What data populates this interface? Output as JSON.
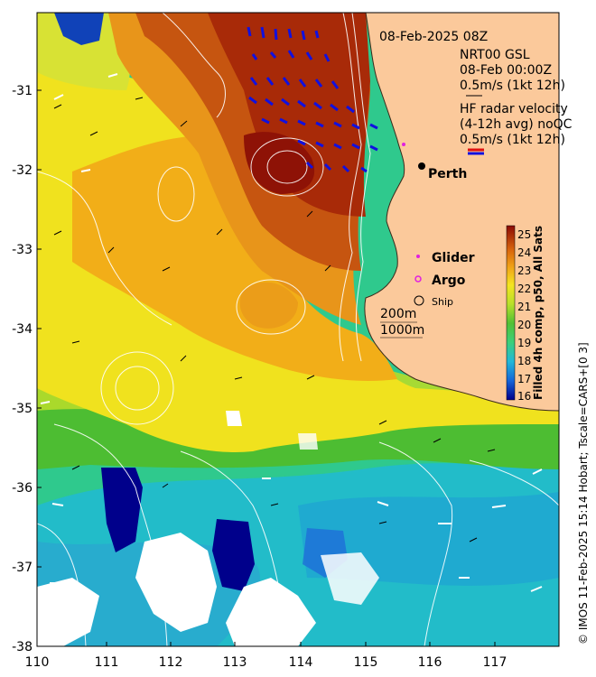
{
  "map": {
    "date_title": "08-Feb-2025 08Z",
    "x_ticks": [
      "110",
      "111",
      "112",
      "113",
      "114",
      "115",
      "116",
      "117"
    ],
    "y_ticks": [
      "-31",
      "-32",
      "-33",
      "-34",
      "-35",
      "-36",
      "-37",
      "-38"
    ],
    "city_label": "Perth",
    "legend": {
      "nrt_title": "NRT00 GSL",
      "nrt_date": "08-Feb 00:00Z",
      "nrt_scale": "0.5m/s (1kt 12h)",
      "hf_line1": "HF radar velocity",
      "hf_line2": "(4-12h avg) noQC",
      "hf_scale": "0.5m/s (1kt 12h)",
      "glider": "Glider",
      "argo": "Argo",
      "ship": "Ship",
      "contour_200": "200m",
      "contour_1000": "1000m"
    },
    "colorbar": {
      "label": "Filled 4h comp, p50, All Sats",
      "ticks": [
        "25",
        "24",
        "23",
        "22",
        "21",
        "20",
        "19",
        "18",
        "17",
        "16"
      ],
      "min": 16,
      "max": 25.5
    },
    "credit": "© IMOS 11-Feb-2025 15:14 Hobart; Tscale=CARS+[0 3]",
    "colors": {
      "land": "#fbc99b",
      "hf_arrow": "#1010e0",
      "argo": "#e020e0",
      "glider": "#e020e0"
    }
  }
}
